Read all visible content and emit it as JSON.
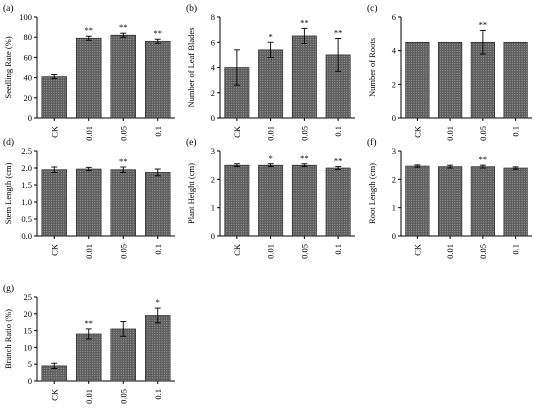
{
  "chart_data": [
    {
      "type": "bar",
      "panel_label": "(a)",
      "ylabel": "Seedling Rate (%)",
      "categories": [
        "CK",
        "0.01",
        "0.05",
        "0.1"
      ],
      "values": [
        41,
        79,
        82,
        76
      ],
      "errors": [
        2,
        2,
        2,
        2
      ],
      "significance": [
        "",
        "**",
        "**",
        "**"
      ],
      "ylim": [
        0,
        100
      ],
      "yticks": [
        0,
        20,
        40,
        60,
        80,
        100
      ]
    },
    {
      "type": "bar",
      "panel_label": "(b)",
      "ylabel": "Number of Leaf Blades",
      "categories": [
        "CK",
        "0.01",
        "0.05",
        "0.1"
      ],
      "values": [
        4.0,
        5.4,
        6.5,
        5.0
      ],
      "errors": [
        1.4,
        0.6,
        0.6,
        1.3
      ],
      "significance": [
        "",
        "*",
        "**",
        "**"
      ],
      "ylim": [
        0,
        8
      ],
      "yticks": [
        0,
        2,
        4,
        6,
        8
      ]
    },
    {
      "type": "bar",
      "panel_label": "(c)",
      "ylabel": "Number of Roots",
      "categories": [
        "CK",
        "0.01",
        "0.05",
        "0.1"
      ],
      "values": [
        4.5,
        4.5,
        4.5,
        4.5
      ],
      "errors": [
        0,
        0,
        0.7,
        0
      ],
      "significance": [
        "",
        "",
        "**",
        ""
      ],
      "ylim": [
        0,
        6
      ],
      "yticks": [
        0,
        2,
        4,
        6
      ]
    },
    {
      "type": "bar",
      "panel_label": "(d)",
      "ylabel": "Stem Length (cm)",
      "categories": [
        "CK",
        "0.01",
        "0.05",
        "0.1"
      ],
      "values": [
        1.95,
        1.97,
        1.95,
        1.87
      ],
      "errors": [
        0.08,
        0.05,
        0.08,
        0.1
      ],
      "significance": [
        "",
        "",
        "**",
        ""
      ],
      "ylim": [
        0,
        2.5
      ],
      "yticks": [
        0.0,
        0.5,
        1.0,
        1.5,
        2.0,
        2.5
      ]
    },
    {
      "type": "bar",
      "panel_label": "(e)",
      "ylabel": "Plant Height (cm)",
      "categories": [
        "CK",
        "0.01",
        "0.05",
        "0.1"
      ],
      "values": [
        2.5,
        2.5,
        2.5,
        2.4
      ],
      "errors": [
        0.05,
        0.05,
        0.05,
        0.05
      ],
      "significance": [
        "",
        "*",
        "**",
        "**"
      ],
      "ylim": [
        0,
        3
      ],
      "yticks": [
        0,
        1,
        2,
        3
      ]
    },
    {
      "type": "bar",
      "panel_label": "(f)",
      "ylabel": "Root Length (cm)",
      "categories": [
        "CK",
        "0.01",
        "0.05",
        "0.1"
      ],
      "values": [
        2.47,
        2.45,
        2.45,
        2.4
      ],
      "errors": [
        0.04,
        0.05,
        0.05,
        0.04
      ],
      "significance": [
        "",
        "",
        "**",
        ""
      ],
      "ylim": [
        0,
        3
      ],
      "yticks": [
        0,
        1,
        2,
        3
      ]
    },
    {
      "type": "bar",
      "panel_label": "(g)",
      "ylabel": "Branch Ratio (%)",
      "categories": [
        "CK",
        "0.01",
        "0.05",
        "0.1"
      ],
      "values": [
        4.5,
        14,
        15.5,
        19.5
      ],
      "errors": [
        0.8,
        1.5,
        2.2,
        2.2
      ],
      "significance": [
        "",
        "**",
        "",
        "*"
      ],
      "ylim": [
        0,
        25
      ],
      "yticks": [
        0,
        5,
        10,
        15,
        20,
        25
      ]
    }
  ]
}
